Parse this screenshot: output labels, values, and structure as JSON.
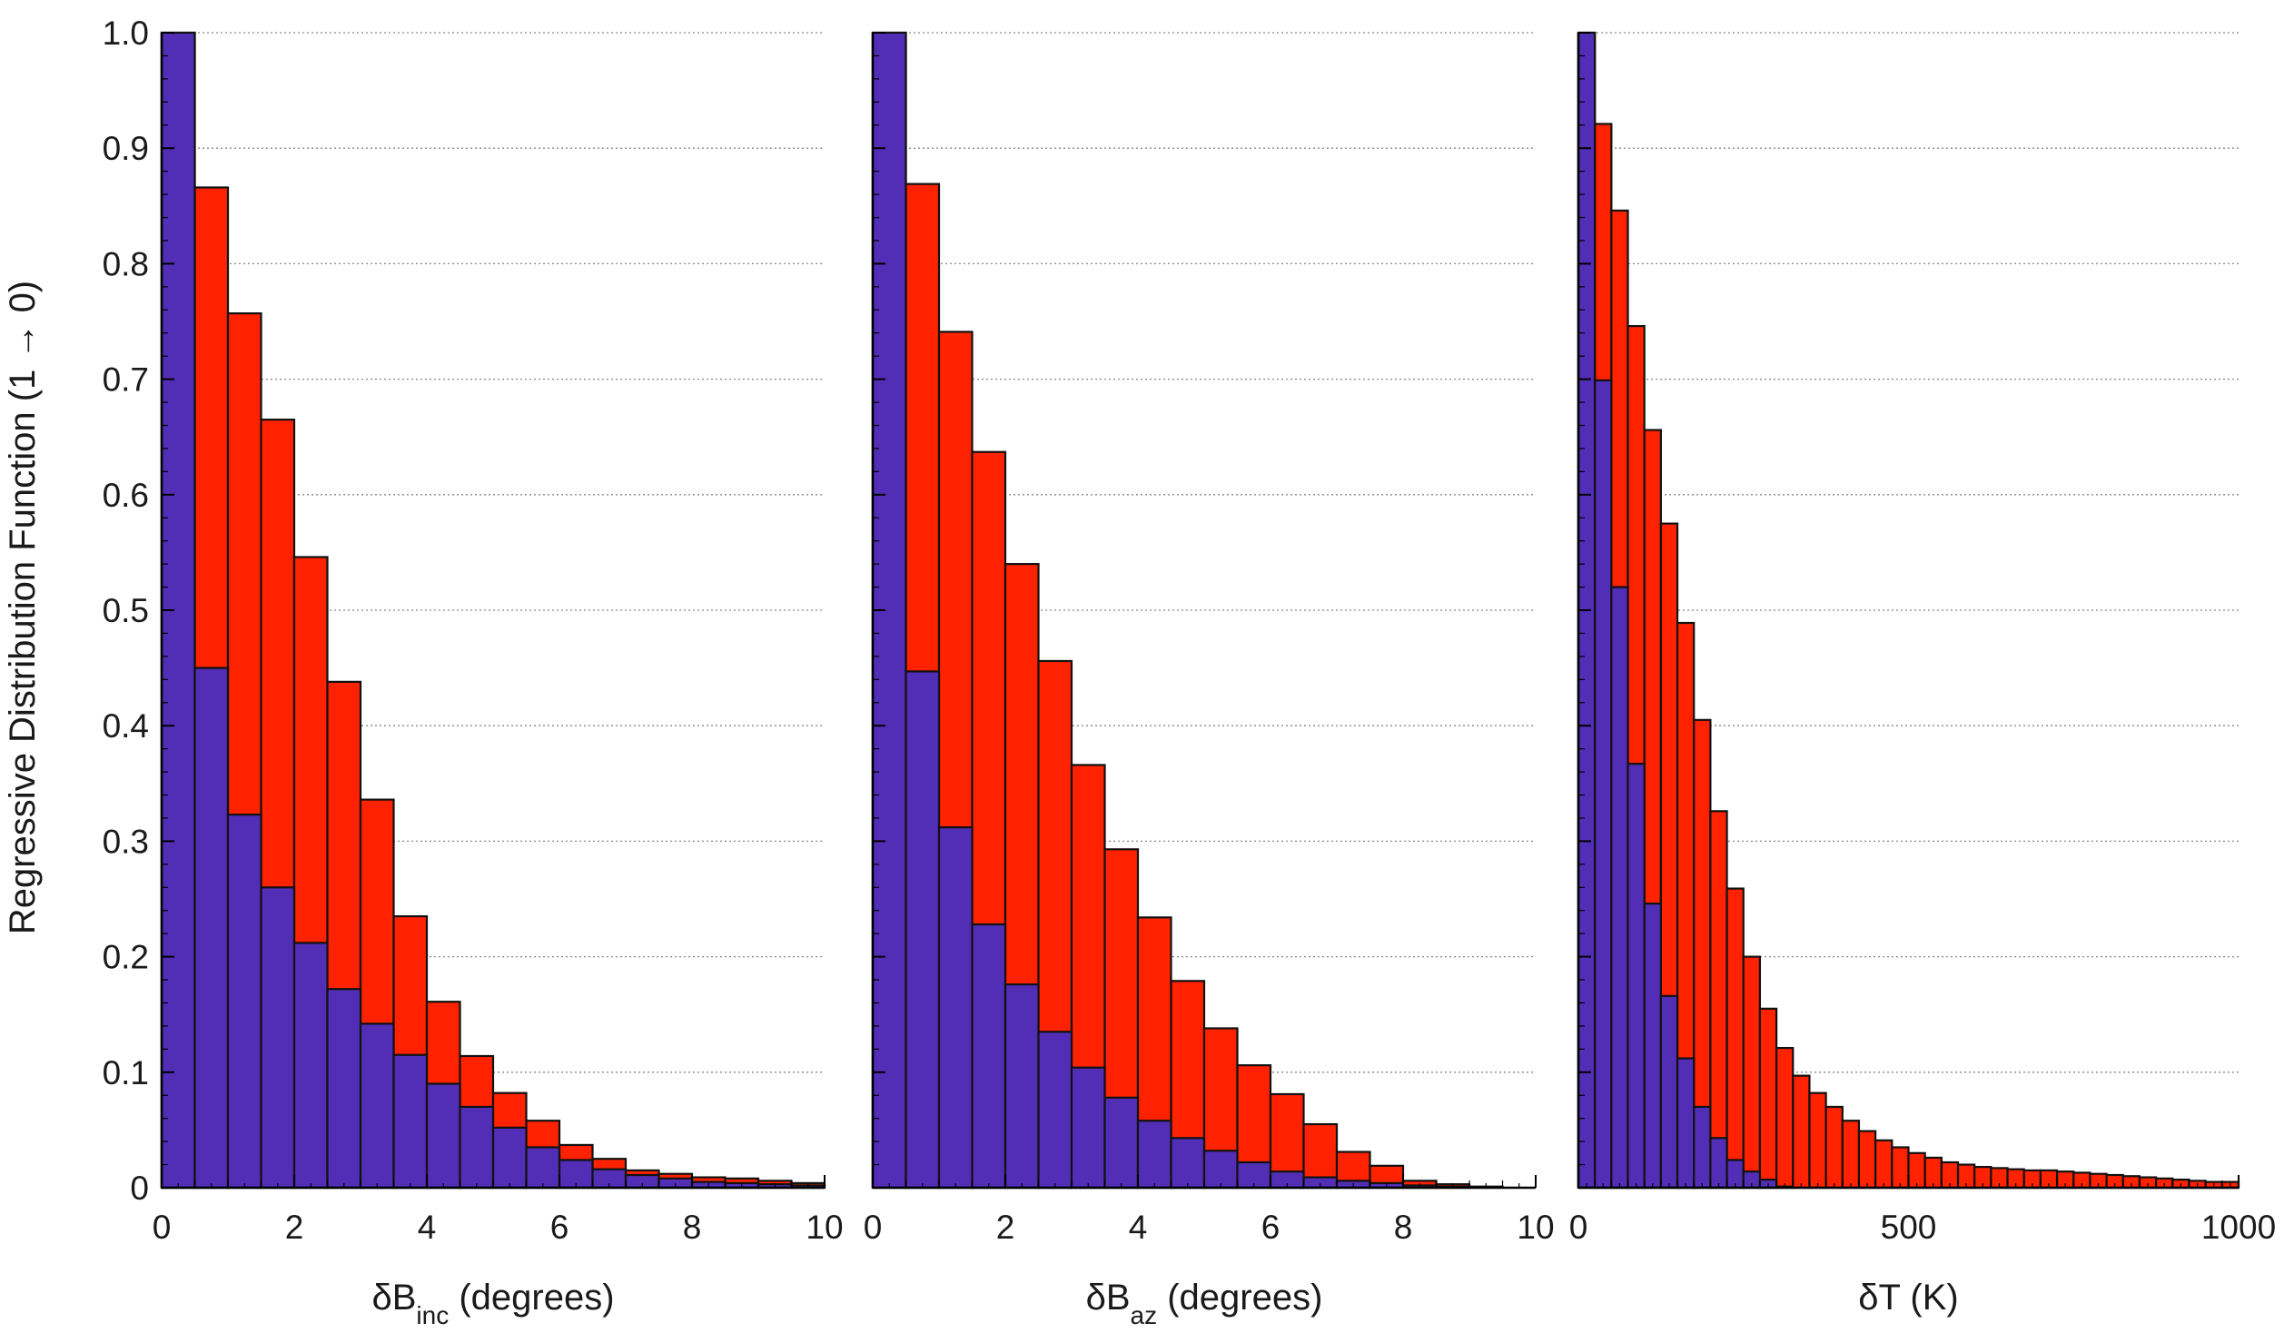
{
  "colors": {
    "blue": "#512EB5",
    "red": "#FF2200",
    "edge": "#111111",
    "grid": "#888888"
  },
  "y_axis_label": "Regressive Distribution Function (1 → 0)",
  "chart_data": [
    {
      "type": "bar",
      "xlabel_main": "δB",
      "xlabel_sub": "inc",
      "xlabel_rest": " (degrees)",
      "xlim": [
        0,
        10
      ],
      "ylim": [
        0,
        1
      ],
      "bin_width": 0.5,
      "xticks": [
        0,
        2,
        4,
        6,
        8,
        10
      ],
      "xtick_labels": [
        "0",
        "2",
        "4",
        "6",
        "8",
        "10"
      ],
      "yticks": [
        0,
        0.1,
        0.2,
        0.3,
        0.4,
        0.5,
        0.6,
        0.7,
        0.8,
        0.9,
        1.0
      ],
      "ytick_labels": [
        "0",
        "0.1",
        "0.2",
        "0.3",
        "0.4",
        "0.5",
        "0.6",
        "0.7",
        "0.8",
        "0.9",
        "1.0"
      ],
      "grid": true,
      "series": [
        {
          "color": "red",
          "values": [
            1.0,
            0.866,
            0.757,
            0.665,
            0.546,
            0.438,
            0.336,
            0.235,
            0.161,
            0.114,
            0.082,
            0.058,
            0.037,
            0.025,
            0.015,
            0.012,
            0.009,
            0.008,
            0.006,
            0.004
          ]
        },
        {
          "color": "blue",
          "values": [
            1.0,
            0.45,
            0.323,
            0.26,
            0.212,
            0.172,
            0.142,
            0.115,
            0.09,
            0.07,
            0.052,
            0.035,
            0.024,
            0.016,
            0.011,
            0.008,
            0.005,
            0.004,
            0.003,
            0.002
          ]
        }
      ]
    },
    {
      "type": "bar",
      "xlabel_main": "δB",
      "xlabel_sub": "az",
      "xlabel_rest": " (degrees)",
      "xlim": [
        0,
        10
      ],
      "ylim": [
        0,
        1
      ],
      "bin_width": 0.5,
      "xticks": [
        0,
        2,
        4,
        6,
        8,
        10
      ],
      "xtick_labels": [
        "0",
        "2",
        "4",
        "6",
        "8",
        "10"
      ],
      "yticks": [
        0,
        0.1,
        0.2,
        0.3,
        0.4,
        0.5,
        0.6,
        0.7,
        0.8,
        0.9,
        1.0
      ],
      "ytick_labels": [],
      "grid": true,
      "series": [
        {
          "color": "red",
          "values": [
            1.0,
            0.869,
            0.741,
            0.637,
            0.54,
            0.456,
            0.366,
            0.293,
            0.234,
            0.179,
            0.138,
            0.106,
            0.081,
            0.055,
            0.031,
            0.019,
            0.006,
            0.003,
            0.001,
            0.0
          ]
        },
        {
          "color": "blue",
          "values": [
            1.0,
            0.447,
            0.312,
            0.228,
            0.176,
            0.135,
            0.104,
            0.078,
            0.058,
            0.043,
            0.032,
            0.022,
            0.014,
            0.009,
            0.006,
            0.004,
            0.002,
            0.001,
            0.0,
            0.0
          ]
        }
      ]
    },
    {
      "type": "bar",
      "xlabel_main": "δT",
      "xlabel_sub": "",
      "xlabel_rest": " (K)",
      "xlim": [
        0,
        1000
      ],
      "ylim": [
        0,
        1
      ],
      "bin_width": 25,
      "xticks": [
        0,
        500,
        1000
      ],
      "xtick_labels": [
        "0",
        "500",
        "1000"
      ],
      "yticks": [
        0,
        0.1,
        0.2,
        0.3,
        0.4,
        0.5,
        0.6,
        0.7,
        0.8,
        0.9,
        1.0
      ],
      "ytick_labels": [],
      "grid": true,
      "series": [
        {
          "color": "red",
          "values": [
            1.0,
            0.921,
            0.846,
            0.746,
            0.656,
            0.575,
            0.489,
            0.405,
            0.326,
            0.259,
            0.2,
            0.155,
            0.121,
            0.097,
            0.082,
            0.07,
            0.058,
            0.049,
            0.041,
            0.035,
            0.03,
            0.026,
            0.022,
            0.02,
            0.018,
            0.017,
            0.016,
            0.015,
            0.015,
            0.014,
            0.013,
            0.012,
            0.011,
            0.01,
            0.009,
            0.008,
            0.007,
            0.006,
            0.005,
            0.005
          ]
        },
        {
          "color": "blue",
          "values": [
            1.0,
            0.699,
            0.52,
            0.367,
            0.246,
            0.166,
            0.112,
            0.07,
            0.043,
            0.024,
            0.014,
            0.007,
            0.001,
            0.0,
            0.0,
            0.0,
            0.0,
            0.0,
            0.0,
            0.0,
            0.0,
            0.0,
            0.0,
            0.0,
            0.0,
            0.0,
            0.0,
            0.0,
            0.0,
            0.0,
            0.0,
            0.0,
            0.0,
            0.0,
            0.0,
            0.0,
            0.0,
            0.0,
            0.0,
            0.0
          ]
        }
      ]
    }
  ]
}
